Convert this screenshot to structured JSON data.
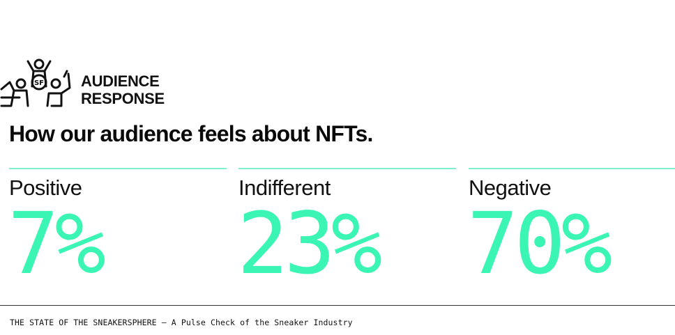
{
  "header": {
    "logo_text_line1": "AUDIENCE",
    "logo_text_line2": "RESPONSE",
    "logo_emblem": "SF"
  },
  "headline": "How our audience feels about NFTs.",
  "stats": [
    {
      "label": "Positive",
      "value": "7%"
    },
    {
      "label": "Indifferent",
      "value": "23%"
    },
    {
      "label": "Negative",
      "value": "70%"
    }
  ],
  "footer": {
    "text": "THE STATE OF THE SNEAKERSPHERE – A Pulse Check of the Sneaker Industry"
  },
  "colors": {
    "accent": "#3bf5b5",
    "rule": "#7ff0cf",
    "text": "#111111"
  }
}
